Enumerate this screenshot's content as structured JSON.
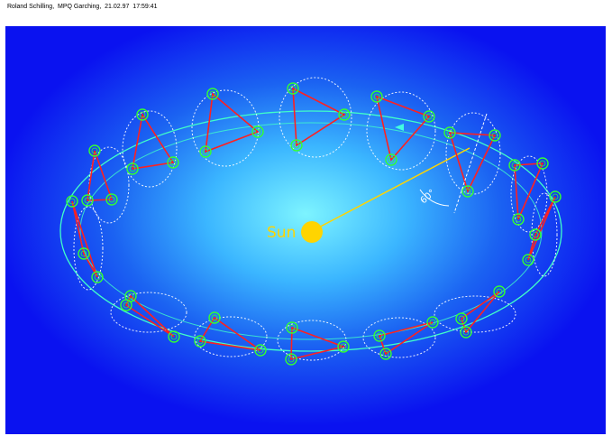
{
  "header": {
    "text": "Roland Schilling,  MPQ Garching,  21.02.97  17:59:41"
  },
  "diagram": {
    "sun_label": "Sun",
    "angle_label": "60°",
    "colors": {
      "orbit": "#40ffc8",
      "arm": "#ff2020",
      "spacecraft": "#33ff33",
      "sun": "#ffd400",
      "sun_line": "#ffd400",
      "dashed_halo": "#ffffff",
      "direction_arrow": "#40ffe0"
    }
  }
}
